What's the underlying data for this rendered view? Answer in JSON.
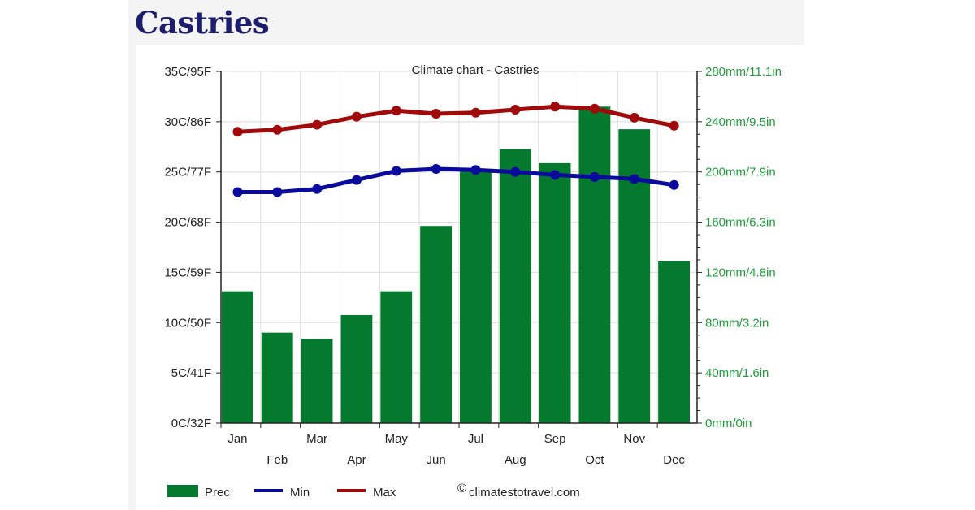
{
  "page": {
    "heading": "Castries"
  },
  "chart_data": {
    "type": "bar+line",
    "title": "Climate chart - Castries",
    "categories": [
      "Jan",
      "Feb",
      "Mar",
      "Apr",
      "May",
      "Jun",
      "Jul",
      "Aug",
      "Sep",
      "Oct",
      "Nov",
      "Dec"
    ],
    "series": [
      {
        "name": "Prec",
        "type": "bar",
        "axis": "right",
        "unit": "mm",
        "color": "#057a2e",
        "values": [
          105,
          72,
          67,
          86,
          105,
          157,
          202,
          218,
          207,
          252,
          234,
          129
        ]
      },
      {
        "name": "Min",
        "type": "line",
        "axis": "left",
        "unit": "C",
        "color": "#0a0a9c",
        "values": [
          23.0,
          23.0,
          23.3,
          24.2,
          25.1,
          25.3,
          25.2,
          25.0,
          24.7,
          24.5,
          24.3,
          23.7
        ]
      },
      {
        "name": "Max",
        "type": "line",
        "axis": "left",
        "unit": "C",
        "color": "#a00a0a",
        "values": [
          29.0,
          29.2,
          29.7,
          30.5,
          31.1,
          30.8,
          30.9,
          31.2,
          31.5,
          31.3,
          30.4,
          29.6
        ]
      }
    ],
    "left_axis": {
      "range": [
        0,
        35
      ],
      "ticks": [
        "0C/32F",
        "5C/41F",
        "10C/50F",
        "15C/59F",
        "20C/68F",
        "25C/77F",
        "30C/86F",
        "35C/95F"
      ]
    },
    "right_axis": {
      "range": [
        0,
        280
      ],
      "color": "#1e9e3a",
      "ticks": [
        "0mm/0in",
        "40mm/1.6in",
        "80mm/3.2in",
        "120mm/4.8in",
        "160mm/6.3in",
        "200mm/7.9in",
        "240mm/9.5in",
        "280mm/11.1in"
      ]
    },
    "grid": true,
    "legend": {
      "placement": "bottom-left",
      "items": [
        "Prec",
        "Min",
        "Max"
      ]
    },
    "credit": "climatestotravel.com",
    "credit_symbol": "©"
  }
}
